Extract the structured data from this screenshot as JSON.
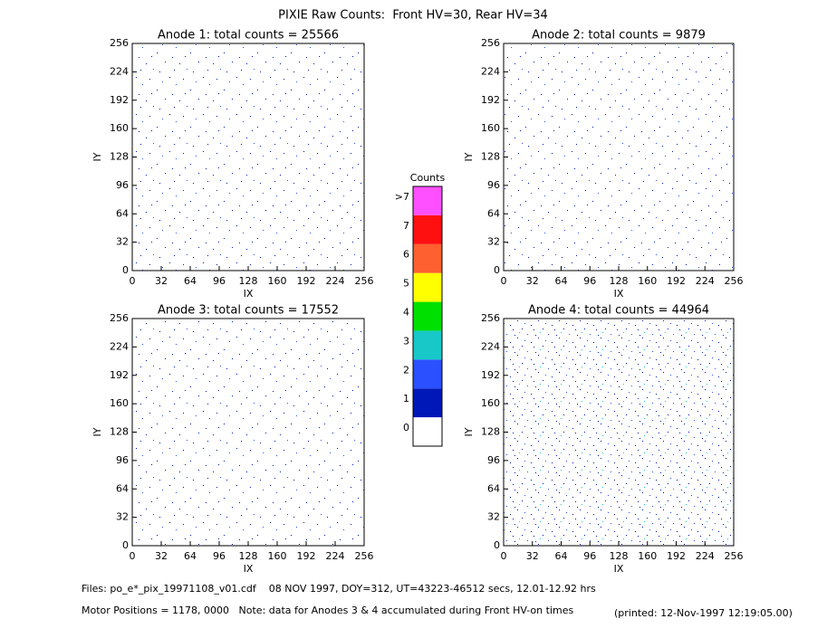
{
  "title": "PIXIE Raw Counts:  Front HV=30, Rear HV=34",
  "chart_data": [
    {
      "type": "heatmap",
      "title": "Anode 1: total counts = 25566",
      "x_label": "IX",
      "y_label": "IY",
      "xlim": [
        0,
        256
      ],
      "ylim": [
        0,
        256
      ],
      "xticks": [
        0,
        32,
        64,
        96,
        128,
        160,
        192,
        224,
        256
      ],
      "yticks": [
        0,
        32,
        64,
        96,
        128,
        160,
        192,
        224,
        256
      ]
    },
    {
      "type": "heatmap",
      "title": "Anode 2: total counts = 9879",
      "x_label": "IX",
      "y_label": "IY",
      "xlim": [
        0,
        256
      ],
      "ylim": [
        0,
        256
      ],
      "xticks": [
        0,
        32,
        64,
        96,
        128,
        160,
        192,
        224,
        256
      ],
      "yticks": [
        0,
        32,
        64,
        96,
        128,
        160,
        192,
        224,
        256
      ]
    },
    {
      "type": "heatmap",
      "title": "Anode 3: total counts = 17552",
      "x_label": "IX",
      "y_label": "IY",
      "xlim": [
        0,
        256
      ],
      "ylim": [
        0,
        256
      ],
      "xticks": [
        0,
        32,
        64,
        96,
        128,
        160,
        192,
        224,
        256
      ],
      "yticks": [
        0,
        32,
        64,
        96,
        128,
        160,
        192,
        224,
        256
      ]
    },
    {
      "type": "heatmap",
      "title": "Anode 4: total counts = 44964",
      "x_label": "IX",
      "y_label": "IY",
      "xlim": [
        0,
        256
      ],
      "ylim": [
        0,
        256
      ],
      "xticks": [
        0,
        32,
        64,
        96,
        128,
        160,
        192,
        224,
        256
      ],
      "yticks": [
        0,
        32,
        64,
        96,
        128,
        160,
        192,
        224,
        256
      ]
    }
  ],
  "colorbar": {
    "title": "Counts",
    "ticks": [
      0,
      1,
      2,
      3,
      4,
      5,
      6,
      7
    ],
    "overflow_label": ">7",
    "colors": [
      "#ffffff",
      "#0018b8",
      "#2a50ff",
      "#18c8c8",
      "#00e000",
      "#ffff00",
      "#ff6030",
      "#ff1010",
      "#ff50ff"
    ]
  },
  "footer": {
    "files": "Files: po_e*_pix_19971108_v01.cdf    08 NOV 1997, DOY=312, UT=43223-46512 secs, 12.01-12.92 hrs",
    "motor": "Motor Positions = 1178, 0000   Note: data for Anodes 3 & 4 accumulated during Front HV-on times",
    "printed": "(printed: 12-Nov-1997 12:19:05.00)"
  }
}
